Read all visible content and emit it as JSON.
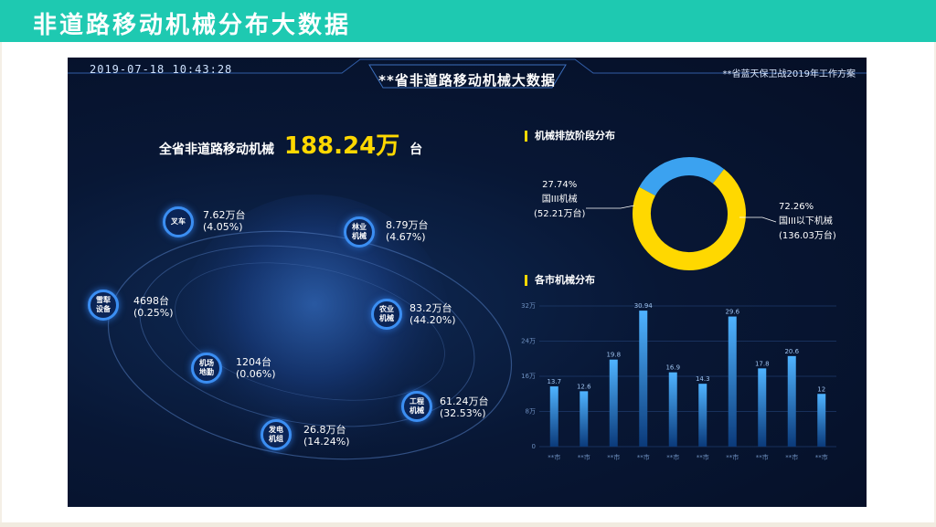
{
  "slide": {
    "title": "非道路移动机械分布大数据"
  },
  "dashboard": {
    "datetime": "2019-07-18  10:43:28",
    "title": "**省非道路移动机械大数据",
    "program": "**省蓝天保卫战2019年工作方案",
    "total": {
      "prefix": "全省非道路移动机械",
      "value": "188.24万",
      "unit": "台"
    },
    "categories": [
      {
        "name": "叉车",
        "value": "7.62万台",
        "pct": "(4.05%)"
      },
      {
        "name": "林业机械",
        "value": "8.79万台",
        "pct": "(4.67%)"
      },
      {
        "name": "雪犁设备",
        "value": "4698台",
        "pct": "(0.25%)"
      },
      {
        "name": "农业机械",
        "value": "83.2万台",
        "pct": "(44.20%)"
      },
      {
        "name": "机场地勤",
        "value": "1204台",
        "pct": "(0.06%)"
      },
      {
        "name": "工程机械",
        "value": "61.24万台",
        "pct": "(32.53%)"
      },
      {
        "name": "发电机组",
        "value": "26.8万台",
        "pct": "(14.24%)"
      }
    ],
    "emission_panel": {
      "heading": "机械排放阶段分布",
      "left": {
        "pct": "27.74%",
        "name": "国III机械",
        "count": "(52.21万台)"
      },
      "right": {
        "pct": "72.26%",
        "name": "国III以下机械",
        "count": "(136.03万台)"
      }
    },
    "city_panel": {
      "heading": "各市机械分布"
    }
  },
  "colors": {
    "accent": "#ffd800",
    "blue": "#3ba2f0",
    "header": "#1ec9b1"
  },
  "chart_data": [
    {
      "type": "pie",
      "title": "机械排放阶段分布",
      "labels": [
        "国III机械",
        "国III以下机械"
      ],
      "values": [
        27.74,
        72.26
      ],
      "colors": [
        "#3ba2f0",
        "#ffd800"
      ]
    },
    {
      "type": "bar",
      "title": "各市机械分布",
      "categories": [
        "**市",
        "**市",
        "**市",
        "**市",
        "**市",
        "**市",
        "**市",
        "**市",
        "**市",
        "**市"
      ],
      "values": [
        13.7,
        12.6,
        19.8,
        30.94,
        16.9,
        14.3,
        29.6,
        17.8,
        20.6,
        12
      ],
      "value_labels": [
        "13.7",
        "12.6",
        "19.8",
        "30.94",
        "16.9",
        "14.3",
        "29.6",
        "17.8",
        "20.6",
        "12"
      ],
      "yticks": [
        "0",
        "8万",
        "16万",
        "24万",
        "32万"
      ],
      "ylim": [
        0,
        32
      ],
      "grid": true
    }
  ]
}
